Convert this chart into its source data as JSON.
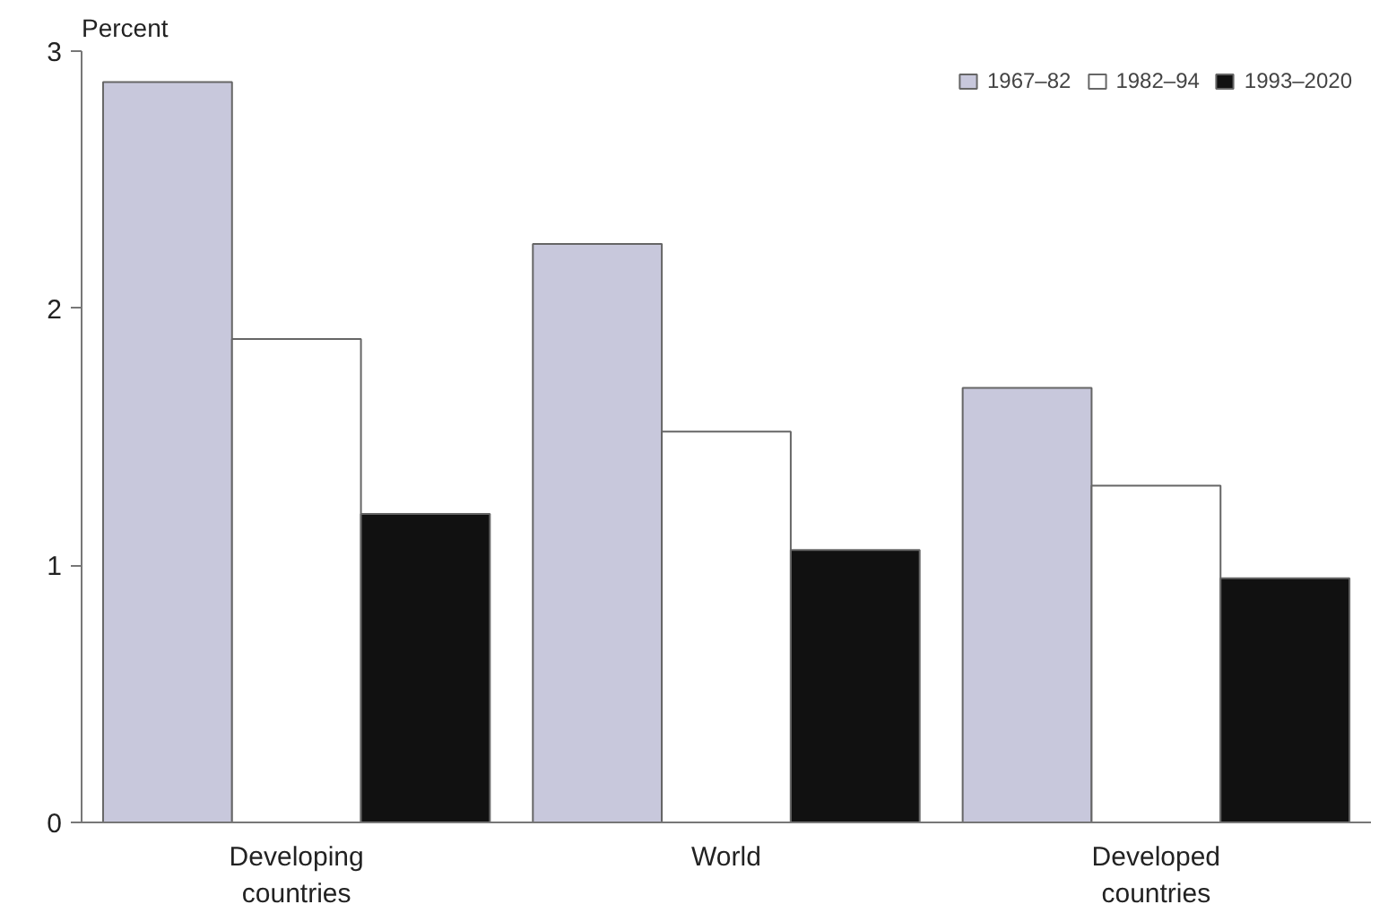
{
  "chart_data": {
    "type": "bar",
    "ylabel": "Percent",
    "categories": [
      "Developing\ncountries",
      "World",
      "Developed\ncountries"
    ],
    "series": [
      {
        "name": "1967–82",
        "color": "#c8c8dc",
        "values": [
          2.88,
          2.25,
          1.69
        ]
      },
      {
        "name": "1982–94",
        "color": "#ffffff",
        "values": [
          1.88,
          1.52,
          1.31
        ]
      },
      {
        "name": "1993–2020",
        "color": "#111111",
        "values": [
          1.2,
          1.06,
          0.95
        ]
      }
    ],
    "ylim": [
      0,
      3
    ],
    "yticks": [
      0,
      1,
      2,
      3
    ],
    "grid": false,
    "legend": "top right"
  }
}
